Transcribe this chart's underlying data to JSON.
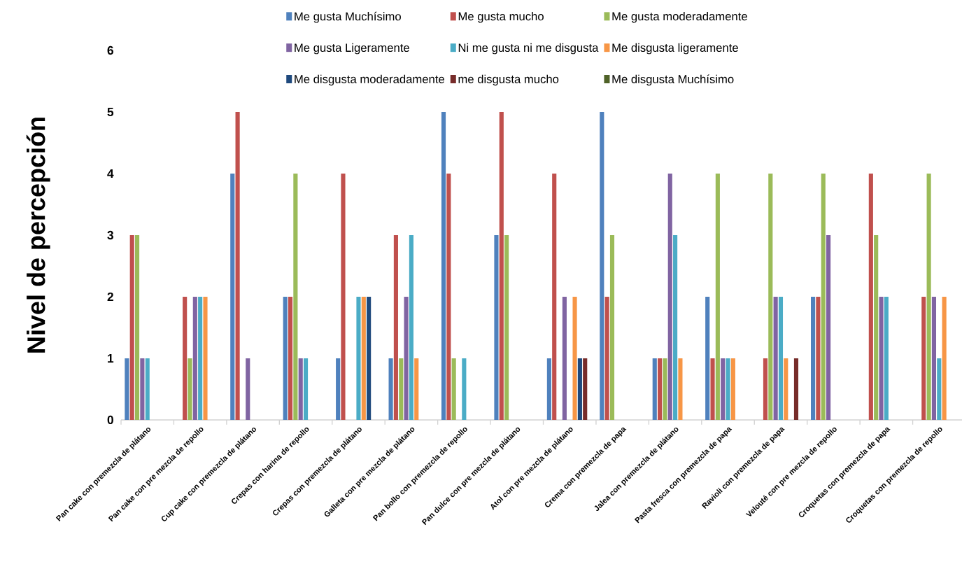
{
  "chart_data": {
    "type": "bar",
    "ylabel": "Nivel de percepción",
    "categories": [
      "Pan cake con premezcla de plátano",
      "Pan cake con pre mezcla de repollo",
      "Cup cake con premezcla de plátano",
      "Crepas con harina de repollo",
      "Crepas con premezcla de plátano",
      "Galleta con pre mezcla de plátano",
      "Pan bollo con premezcla de repollo",
      "Pan dulce con pre mezcla de plátano",
      "Atol con pre mezcla de plátano",
      "Crema con premezcla de papa",
      "Jalea con premezcla de plátano",
      "Pasta fresca con premezcla de papa",
      "Ravioli con premezcla de papa",
      "Velouté con pre mezcla de repollo",
      "Croquetas con premezcla de papa",
      "Croquetas con premezcla de repollo"
    ],
    "series": [
      {
        "name": "Me gusta Muchísimo",
        "color": "#4f81bd",
        "values": [
          1,
          0,
          4,
          2,
          1,
          1,
          5,
          3,
          1,
          5,
          1,
          2,
          0,
          2,
          0,
          0
        ]
      },
      {
        "name": "Me gusta mucho",
        "color": "#c0504d",
        "values": [
          3,
          2,
          5,
          2,
          4,
          3,
          4,
          5,
          4,
          2,
          1,
          1,
          1,
          2,
          4,
          2
        ]
      },
      {
        "name": "Me gusta moderadamente",
        "color": "#9bbb59",
        "values": [
          3,
          1,
          0,
          4,
          0,
          1,
          1,
          3,
          0,
          3,
          1,
          4,
          4,
          4,
          3,
          4
        ]
      },
      {
        "name": "Me gusta Ligeramente",
        "color": "#8064a2",
        "values": [
          1,
          2,
          1,
          1,
          0,
          2,
          0,
          0,
          2,
          0,
          4,
          1,
          2,
          3,
          2,
          2
        ]
      },
      {
        "name": "Ni me gusta ni me disgusta",
        "color": "#4bacc6",
        "values": [
          1,
          2,
          0,
          1,
          2,
          3,
          1,
          0,
          0,
          0,
          3,
          1,
          2,
          0,
          2,
          1
        ]
      },
      {
        "name": "Me disgusta ligeramente",
        "color": "#f79646",
        "values": [
          0,
          2,
          0,
          0,
          2,
          1,
          0,
          0,
          2,
          0,
          1,
          1,
          1,
          0,
          0,
          2
        ]
      },
      {
        "name": "Me disgusta moderadamente",
        "color": "#1f497d",
        "values": [
          0,
          0,
          0,
          0,
          2,
          0,
          0,
          0,
          1,
          0,
          0,
          0,
          0,
          0,
          0,
          0
        ]
      },
      {
        "name": "me disgusta mucho",
        "color": "#772c2a",
        "values": [
          0,
          0,
          0,
          0,
          0,
          0,
          0,
          0,
          1,
          0,
          0,
          0,
          1,
          0,
          0,
          0
        ]
      },
      {
        "name": "Me disgusta Muchísimo",
        "color": "#4f6228",
        "values": [
          0,
          0,
          0,
          0,
          0,
          0,
          0,
          0,
          0,
          0,
          0,
          0,
          0,
          0,
          0,
          0
        ]
      }
    ],
    "ylim": [
      0,
      6
    ],
    "yticks": [
      0,
      1,
      2,
      3,
      4,
      5,
      6
    ],
    "legend": "top",
    "grid": false
  }
}
